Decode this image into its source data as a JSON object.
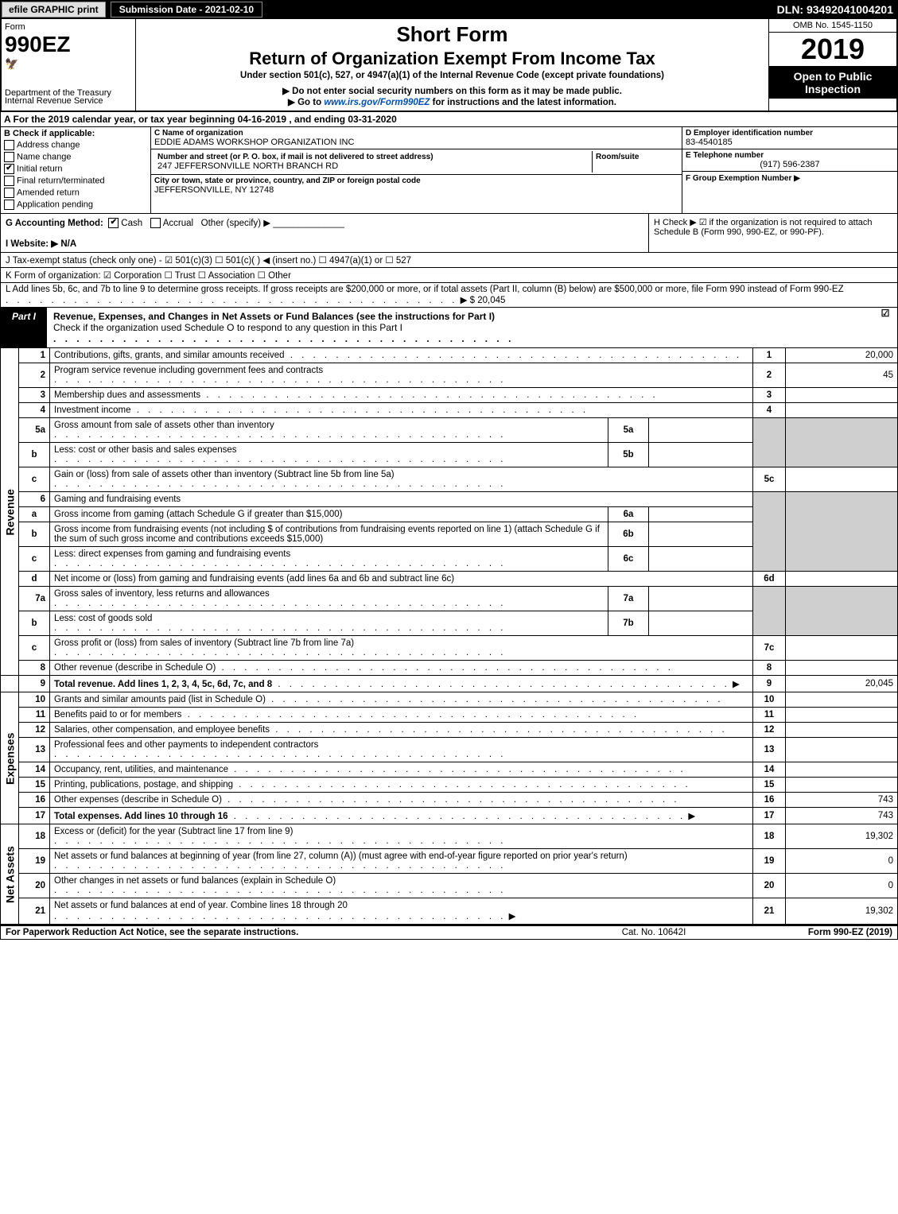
{
  "topbar": {
    "efile_label": "efile GRAPHIC print",
    "submission_label": "Submission Date - 2021-02-10",
    "dln": "DLN: 93492041004201"
  },
  "header": {
    "form_label": "Form",
    "form_number": "990EZ",
    "short_form": "Short Form",
    "title": "Return of Organization Exempt From Income Tax",
    "subtitle": "Under section 501(c), 527, or 4947(a)(1) of the Internal Revenue Code (except private foundations)",
    "warn1": "▶ Do not enter social security numbers on this form as it may be made public.",
    "warn2": "▶ Go to www.irs.gov/Form990EZ for instructions and the latest information.",
    "dept": "Department of the Treasury",
    "irs": "Internal Revenue Service",
    "omb": "OMB No. 1545-1150",
    "year": "2019",
    "open": "Open to Public Inspection"
  },
  "row_a": "A For the 2019 calendar year, or tax year beginning 04-16-2019 , and ending 03-31-2020",
  "col_b": {
    "title": "B Check if applicable:",
    "items": [
      "Address change",
      "Name change",
      "Initial return",
      "Final return/terminated",
      "Amended return",
      "Application pending"
    ],
    "checked": [
      false,
      false,
      true,
      false,
      false,
      false
    ]
  },
  "col_c": {
    "name_label": "C Name of organization",
    "name": "EDDIE ADAMS WORKSHOP ORGANIZATION INC",
    "street_label": "Number and street (or P. O. box, if mail is not delivered to street address)",
    "room_label": "Room/suite",
    "street": "247 JEFFERSONVILLE NORTH BRANCH RD",
    "city_label": "City or town, state or province, country, and ZIP or foreign postal code",
    "city": "JEFFERSONVILLE, NY  12748"
  },
  "col_d": {
    "d_label": "D Employer identification number",
    "d_val": "83-4540185",
    "e_label": "E Telephone number",
    "e_val": "(917) 596-2387",
    "f_label": "F Group Exemption Number ▶"
  },
  "g": {
    "label": "G Accounting Method:",
    "cash": "Cash",
    "accrual": "Accrual",
    "other": "Other (specify) ▶"
  },
  "h": "H  Check ▶ ☑ if the organization is not required to attach Schedule B (Form 990, 990-EZ, or 990-PF).",
  "i": "I Website: ▶ N/A",
  "j": "J Tax-exempt status (check only one) - ☑ 501(c)(3) ☐ 501(c)(  ) ◀ (insert no.) ☐ 4947(a)(1) or ☐ 527",
  "k": "K Form of organization:  ☑ Corporation  ☐ Trust  ☐ Association  ☐ Other",
  "l": {
    "text": "L Add lines 5b, 6c, and 7b to line 9 to determine gross receipts. If gross receipts are $200,000 or more, or if total assets (Part II, column (B) below) are $500,000 or more, file Form 990 instead of Form 990-EZ",
    "amt_label": "▶ $",
    "amt": "20,045"
  },
  "part1": {
    "label": "Part I",
    "title": "Revenue, Expenses, and Changes in Net Assets or Fund Balances (see the instructions for Part I)",
    "check_text": "Check if the organization used Schedule O to respond to any question in this Part I",
    "checked": "☑"
  },
  "sections": {
    "revenue": "Revenue",
    "expenses": "Expenses",
    "netassets": "Net Assets"
  },
  "lines": {
    "1": {
      "n": "1",
      "d": "Contributions, gifts, grants, and similar amounts received",
      "v": "20,000"
    },
    "2": {
      "n": "2",
      "d": "Program service revenue including government fees and contracts",
      "v": "45"
    },
    "3": {
      "n": "3",
      "d": "Membership dues and assessments",
      "v": ""
    },
    "4": {
      "n": "4",
      "d": "Investment income",
      "v": ""
    },
    "5a": {
      "n": "5a",
      "d": "Gross amount from sale of assets other than inventory",
      "sn": "5a",
      "sv": ""
    },
    "5b": {
      "n": "b",
      "d": "Less: cost or other basis and sales expenses",
      "sn": "5b",
      "sv": ""
    },
    "5c": {
      "n": "c",
      "d": "Gain or (loss) from sale of assets other than inventory (Subtract line 5b from line 5a)",
      "rn": "5c",
      "v": ""
    },
    "6": {
      "n": "6",
      "d": "Gaming and fundraising events"
    },
    "6a": {
      "n": "a",
      "d": "Gross income from gaming (attach Schedule G if greater than $15,000)",
      "sn": "6a",
      "sv": ""
    },
    "6b": {
      "n": "b",
      "d": "Gross income from fundraising events (not including $                of contributions from fundraising events reported on line 1) (attach Schedule G if the sum of such gross income and contributions exceeds $15,000)",
      "sn": "6b",
      "sv": ""
    },
    "6c": {
      "n": "c",
      "d": "Less: direct expenses from gaming and fundraising events",
      "sn": "6c",
      "sv": ""
    },
    "6d": {
      "n": "d",
      "d": "Net income or (loss) from gaming and fundraising events (add lines 6a and 6b and subtract line 6c)",
      "rn": "6d",
      "v": ""
    },
    "7a": {
      "n": "7a",
      "d": "Gross sales of inventory, less returns and allowances",
      "sn": "7a",
      "sv": ""
    },
    "7b": {
      "n": "b",
      "d": "Less: cost of goods sold",
      "sn": "7b",
      "sv": ""
    },
    "7c": {
      "n": "c",
      "d": "Gross profit or (loss) from sales of inventory (Subtract line 7b from line 7a)",
      "rn": "7c",
      "v": ""
    },
    "8": {
      "n": "8",
      "d": "Other revenue (describe in Schedule O)",
      "v": ""
    },
    "9": {
      "n": "9",
      "d": "Total revenue. Add lines 1, 2, 3, 4, 5c, 6d, 7c, and 8",
      "v": "20,045",
      "arrow": true,
      "bold": true
    },
    "10": {
      "n": "10",
      "d": "Grants and similar amounts paid (list in Schedule O)",
      "v": ""
    },
    "11": {
      "n": "11",
      "d": "Benefits paid to or for members",
      "v": ""
    },
    "12": {
      "n": "12",
      "d": "Salaries, other compensation, and employee benefits",
      "v": ""
    },
    "13": {
      "n": "13",
      "d": "Professional fees and other payments to independent contractors",
      "v": ""
    },
    "14": {
      "n": "14",
      "d": "Occupancy, rent, utilities, and maintenance",
      "v": ""
    },
    "15": {
      "n": "15",
      "d": "Printing, publications, postage, and shipping",
      "v": ""
    },
    "16": {
      "n": "16",
      "d": "Other expenses (describe in Schedule O)",
      "v": "743"
    },
    "17": {
      "n": "17",
      "d": "Total expenses. Add lines 10 through 16",
      "v": "743",
      "arrow": true,
      "bold": true
    },
    "18": {
      "n": "18",
      "d": "Excess or (deficit) for the year (Subtract line 17 from line 9)",
      "v": "19,302"
    },
    "19": {
      "n": "19",
      "d": "Net assets or fund balances at beginning of year (from line 27, column (A)) (must agree with end-of-year figure reported on prior year's return)",
      "v": "0"
    },
    "20": {
      "n": "20",
      "d": "Other changes in net assets or fund balances (explain in Schedule O)",
      "v": "0"
    },
    "21": {
      "n": "21",
      "d": "Net assets or fund balances at end of year. Combine lines 18 through 20",
      "v": "19,302",
      "arrow": true
    }
  },
  "footer": {
    "left": "For Paperwork Reduction Act Notice, see the separate instructions.",
    "mid": "Cat. No. 10642I",
    "right": "Form 990-EZ (2019)"
  }
}
